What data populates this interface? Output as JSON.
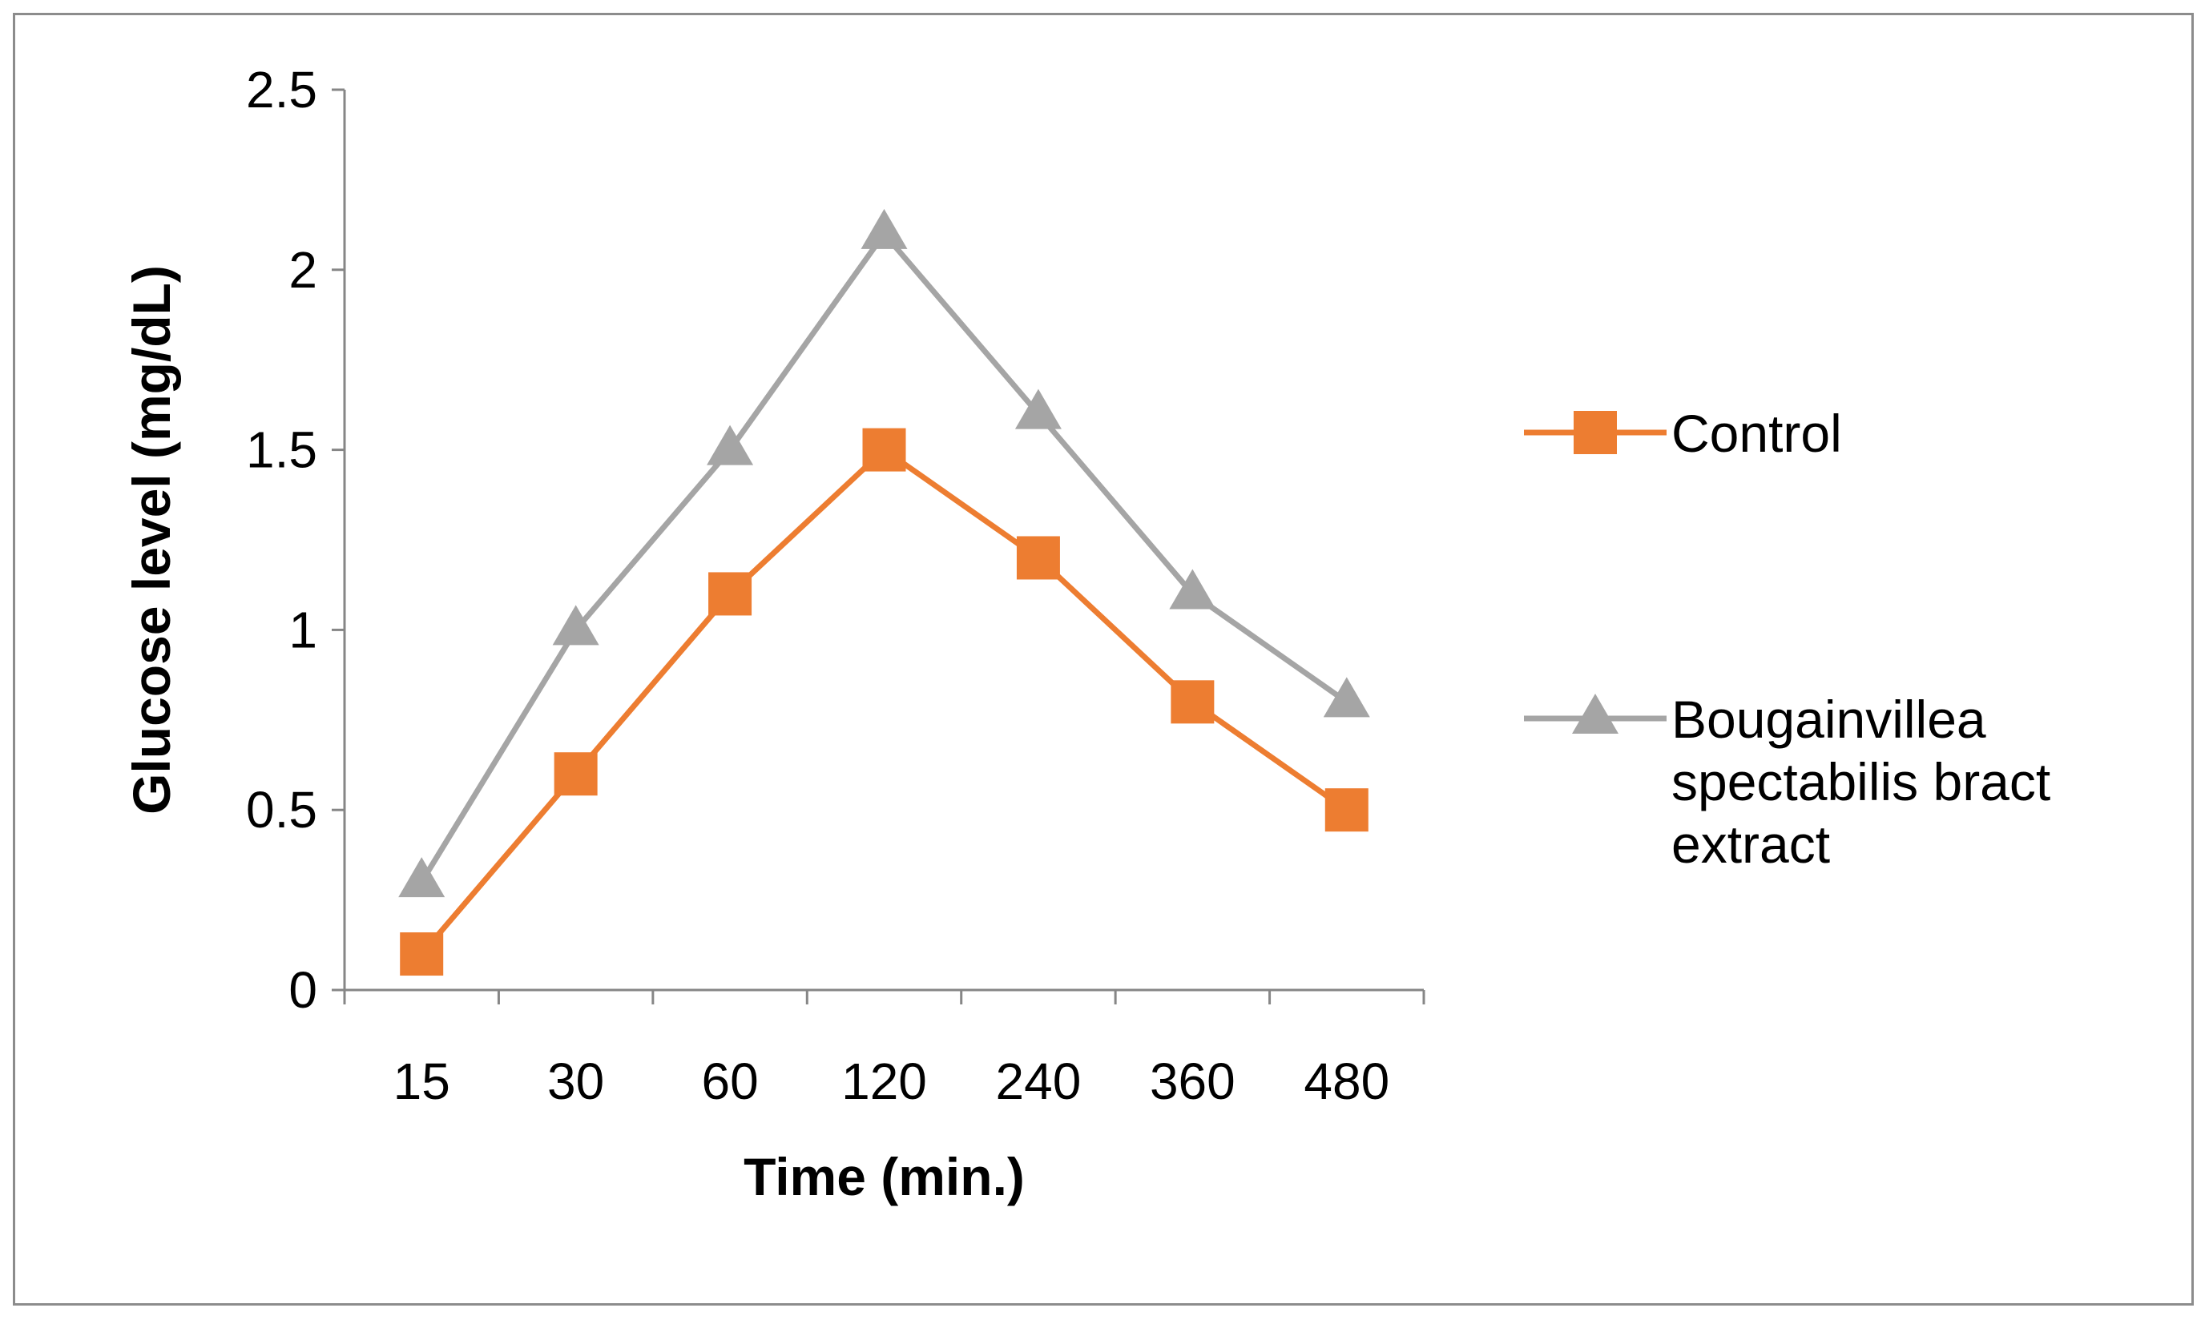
{
  "chart_data": {
    "type": "line",
    "title": "",
    "xlabel": "Time (min.)",
    "ylabel": "Glucose level (mg/dL)",
    "categories": [
      "15",
      "30",
      "60",
      "120",
      "240",
      "360",
      "480"
    ],
    "ylim": [
      0,
      2.5
    ],
    "yticks": [
      "0",
      "0.5",
      "1",
      "1.5",
      "2",
      "2.5"
    ],
    "grid": false,
    "legend_position": "right",
    "series": [
      {
        "name": "Control",
        "marker": "square",
        "color": "#ED7D31",
        "values": [
          0.1,
          0.6,
          1.1,
          1.5,
          1.2,
          0.8,
          0.5
        ]
      },
      {
        "name": "Bougainvillea spectabilis bract extract",
        "marker": "triangle",
        "color": "#A5A5A5",
        "values": [
          0.3,
          1.0,
          1.5,
          2.1,
          1.6,
          1.1,
          0.8
        ]
      }
    ],
    "legend": [
      {
        "lines": [
          "Control"
        ]
      },
      {
        "lines": [
          "Bougainvillea",
          "spectabilis bract",
          "extract"
        ]
      }
    ]
  }
}
